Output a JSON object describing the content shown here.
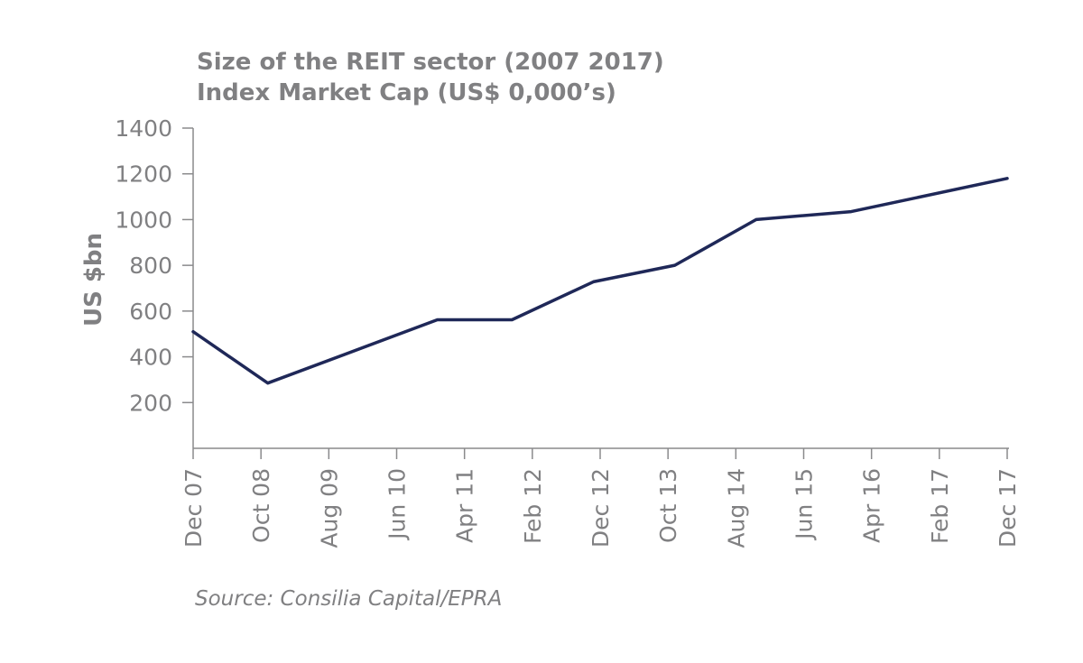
{
  "chart_data": {
    "type": "line",
    "title_line1": "Size of the REIT sector (2007 2017)",
    "title_line2": "Index Market Cap (US$  0,000’s)",
    "ylabel": "US $bn",
    "xlabel": "",
    "source": "Source: Consilia Capital/EPRA",
    "ylim": [
      0,
      1400
    ],
    "yticks": [
      200,
      400,
      600,
      800,
      1000,
      1200,
      1400
    ],
    "categories": [
      "Dec 07",
      "Oct 08",
      "Aug 09",
      "Jun 10",
      "Apr 11",
      "Feb 12",
      "Dec 12",
      "Oct 13",
      "Aug 14",
      "Jun 15",
      "Apr 16",
      "Feb 17",
      "Dec 17"
    ],
    "series": [
      {
        "name": "Index Market Cap",
        "color": "#1f2858",
        "points": [
          {
            "x": 0.0,
            "y": 510
          },
          {
            "x": 1.1,
            "y": 285
          },
          {
            "x": 3.6,
            "y": 562
          },
          {
            "x": 4.7,
            "y": 562
          },
          {
            "x": 5.9,
            "y": 728
          },
          {
            "x": 7.1,
            "y": 800
          },
          {
            "x": 8.3,
            "y": 1000
          },
          {
            "x": 9.7,
            "y": 1035
          },
          {
            "x": 12.0,
            "y": 1180
          }
        ]
      }
    ]
  }
}
